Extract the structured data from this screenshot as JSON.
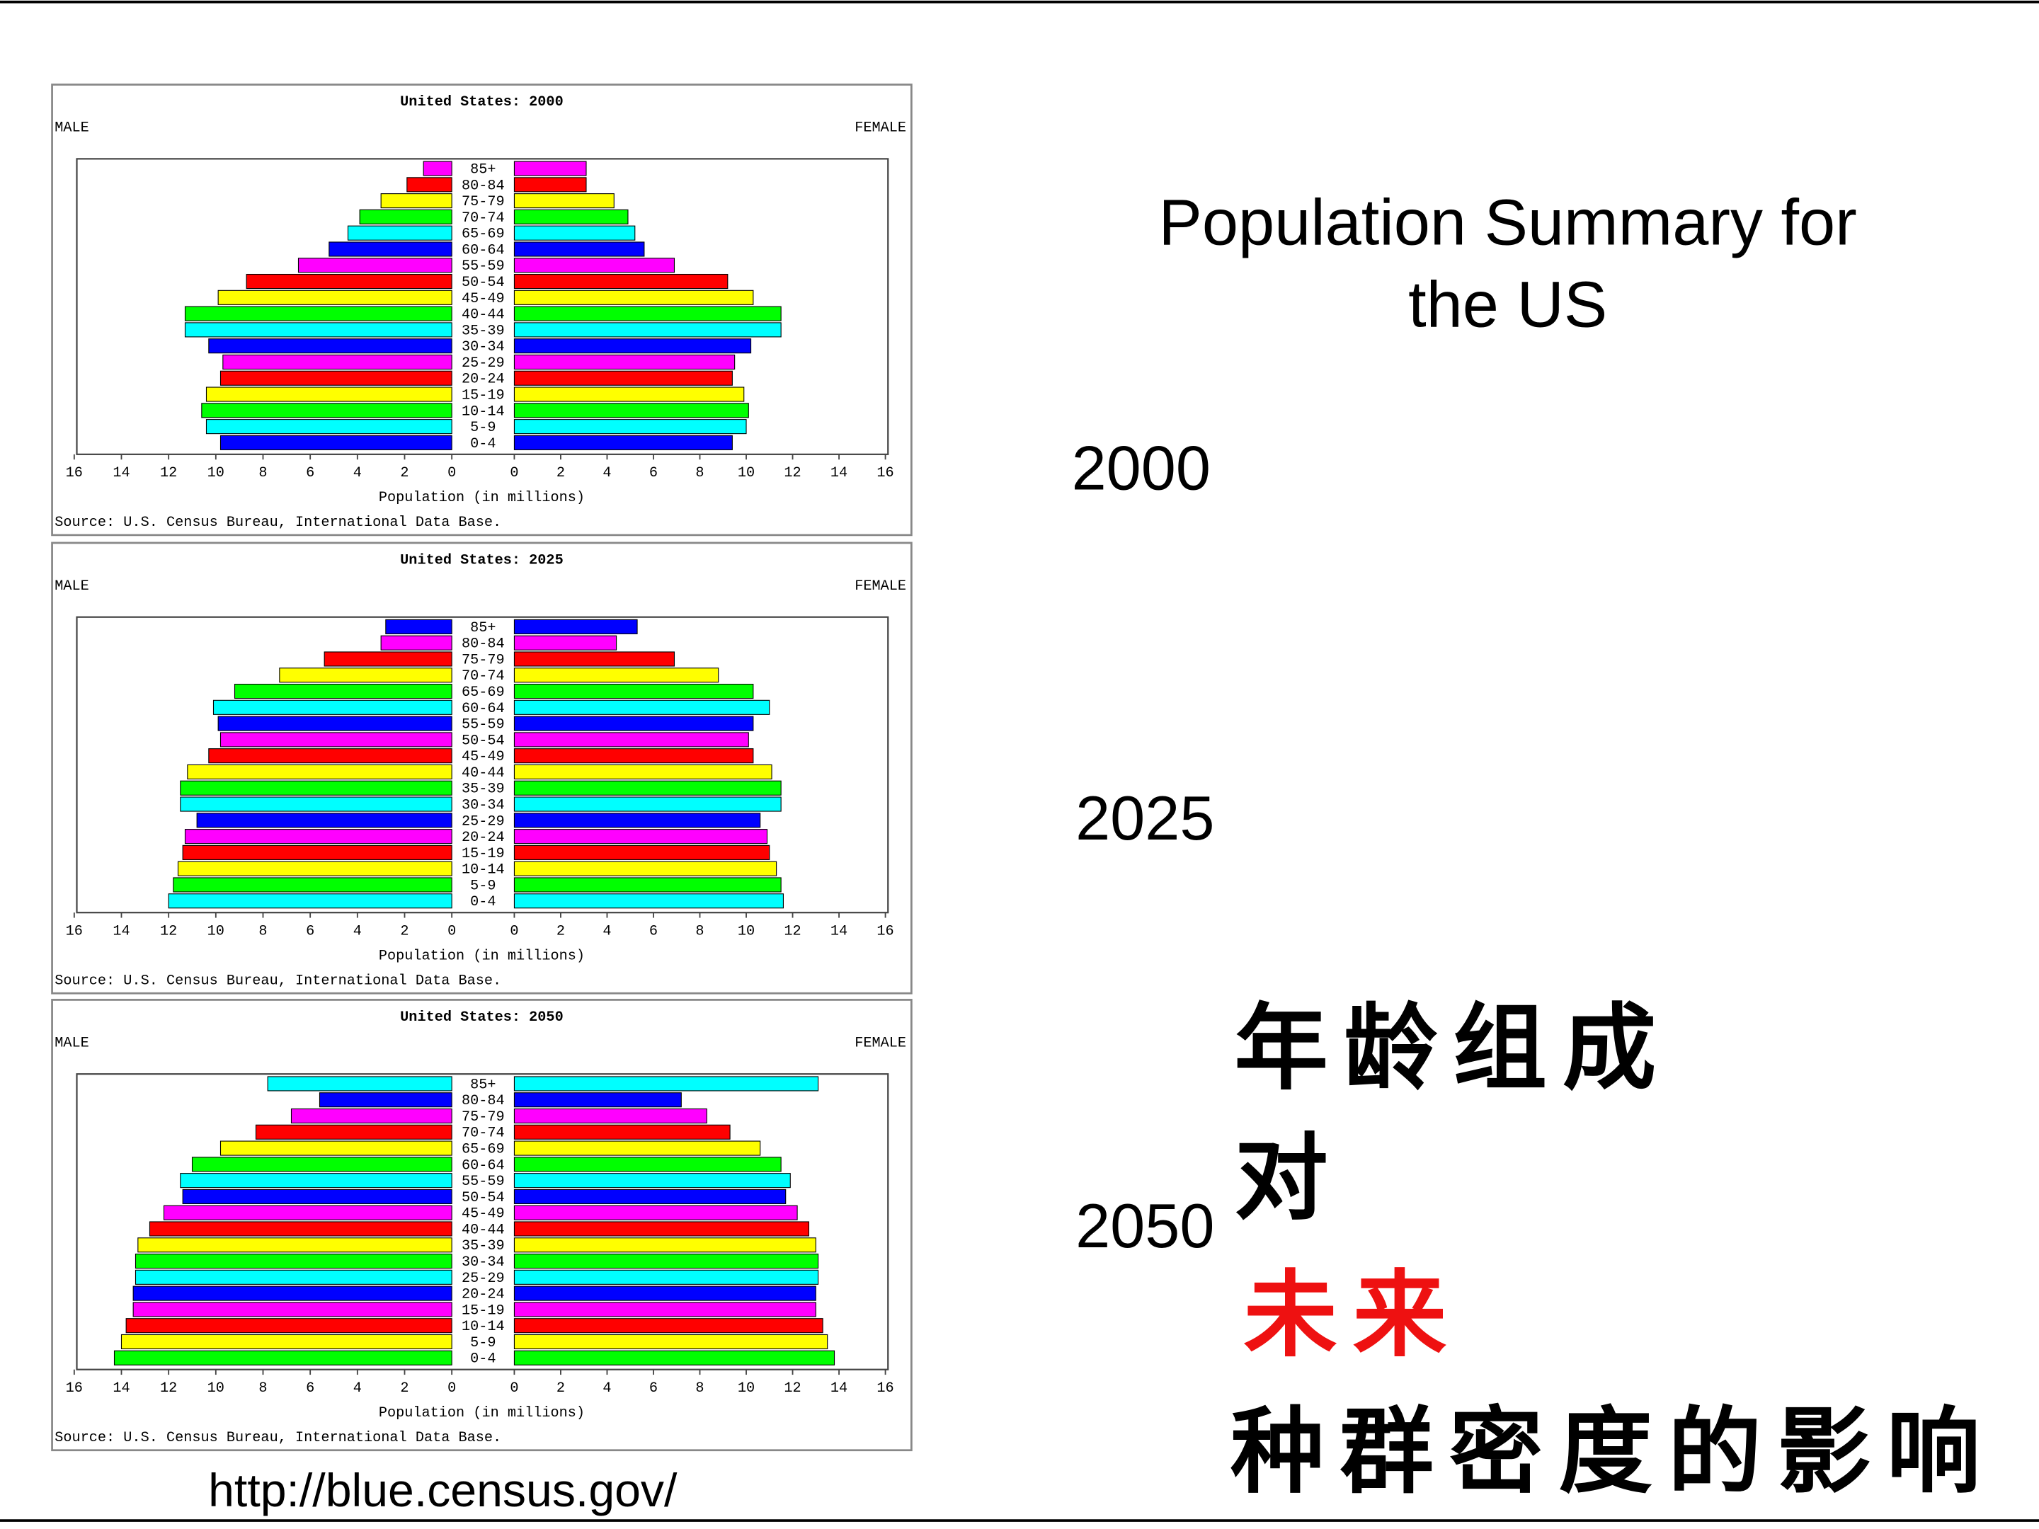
{
  "slide": {
    "title_lines": [
      "Population Summary for",
      "the US"
    ],
    "year_labels": [
      "2000",
      "2025",
      "2050"
    ],
    "note_lines": [
      {
        "text": "年龄组成",
        "color": "#000000"
      },
      {
        "text": "对",
        "color": "#000000"
      },
      {
        "text": "未来",
        "color": "#ee1111"
      },
      {
        "text": "种群密度的影响",
        "color": "#000000"
      }
    ],
    "url": "http://blue.census.gov/"
  },
  "chart_data": [
    {
      "type": "pyramid",
      "title": "United States: 2000",
      "x_label": "Population (in millions)",
      "source": "Source: U.S. Census Bureau, International Data Base.",
      "categories": [
        "0-4",
        "5-9",
        "10-14",
        "15-19",
        "20-24",
        "25-29",
        "30-34",
        "35-39",
        "40-44",
        "45-49",
        "50-54",
        "55-59",
        "60-64",
        "65-69",
        "70-74",
        "75-79",
        "80-84",
        "85+"
      ],
      "colors": [
        "#0000ff",
        "#00ffff",
        "#00ff00",
        "#ffff00",
        "#ff0000",
        "#ff00ff",
        "#0000ff",
        "#00ffff",
        "#00ff00",
        "#ffff00",
        "#ff0000",
        "#ff00ff",
        "#0000ff",
        "#00ffff",
        "#00ff00",
        "#ffff00",
        "#ff0000",
        "#ff00ff"
      ],
      "series": [
        {
          "name": "MALE",
          "values": [
            9.8,
            10.4,
            10.6,
            10.4,
            9.8,
            9.7,
            10.3,
            11.3,
            11.3,
            9.9,
            8.7,
            6.5,
            5.2,
            4.4,
            3.9,
            3.0,
            1.9,
            1.2
          ]
        },
        {
          "name": "FEMALE",
          "values": [
            9.4,
            10.0,
            10.1,
            9.9,
            9.4,
            9.5,
            10.2,
            11.5,
            11.5,
            10.3,
            9.2,
            6.9,
            5.6,
            5.2,
            4.9,
            4.3,
            3.1,
            3.1
          ]
        }
      ],
      "xlim": [
        0,
        16
      ],
      "xticks": [
        0,
        2,
        4,
        6,
        8,
        10,
        12,
        14,
        16
      ]
    },
    {
      "type": "pyramid",
      "title": "United States: 2025",
      "x_label": "Population (in millions)",
      "source": "Source: U.S. Census Bureau, International Data Base.",
      "categories": [
        "0-4",
        "5-9",
        "10-14",
        "15-19",
        "20-24",
        "25-29",
        "30-34",
        "35-39",
        "40-44",
        "45-49",
        "50-54",
        "55-59",
        "60-64",
        "65-69",
        "70-74",
        "75-79",
        "80-84",
        "85+"
      ],
      "colors": [
        "#00ffff",
        "#00ff00",
        "#ffff00",
        "#ff0000",
        "#ff00ff",
        "#0000ff",
        "#00ffff",
        "#00ff00",
        "#ffff00",
        "#ff0000",
        "#ff00ff",
        "#0000ff",
        "#00ffff",
        "#00ff00",
        "#ffff00",
        "#ff0000",
        "#ff00ff",
        "#0000ff"
      ],
      "series": [
        {
          "name": "MALE",
          "values": [
            12.0,
            11.8,
            11.6,
            11.4,
            11.3,
            10.8,
            11.5,
            11.5,
            11.2,
            10.3,
            9.8,
            9.9,
            10.1,
            9.2,
            7.3,
            5.4,
            3.0,
            2.8
          ]
        },
        {
          "name": "FEMALE",
          "values": [
            11.6,
            11.5,
            11.3,
            11.0,
            10.9,
            10.6,
            11.5,
            11.5,
            11.1,
            10.3,
            10.1,
            10.3,
            11.0,
            10.3,
            8.8,
            6.9,
            4.4,
            5.3
          ]
        }
      ],
      "xlim": [
        0,
        16
      ],
      "xticks": [
        0,
        2,
        4,
        6,
        8,
        10,
        12,
        14,
        16
      ]
    },
    {
      "type": "pyramid",
      "title": "United States: 2050",
      "x_label": "Population (in millions)",
      "source": "Source: U.S. Census Bureau, International Data Base.",
      "categories": [
        "0-4",
        "5-9",
        "10-14",
        "15-19",
        "20-24",
        "25-29",
        "30-34",
        "35-39",
        "40-44",
        "45-49",
        "50-54",
        "55-59",
        "60-64",
        "65-69",
        "70-74",
        "75-79",
        "80-84",
        "85+"
      ],
      "colors": [
        "#00ff00",
        "#ffff00",
        "#ff0000",
        "#ff00ff",
        "#0000ff",
        "#00ffff",
        "#00ff00",
        "#ffff00",
        "#ff0000",
        "#ff00ff",
        "#0000ff",
        "#00ffff",
        "#00ff00",
        "#ffff00",
        "#ff0000",
        "#ff00ff",
        "#0000ff",
        "#00ffff"
      ],
      "series": [
        {
          "name": "MALE",
          "values": [
            14.3,
            14.0,
            13.8,
            13.5,
            13.5,
            13.4,
            13.4,
            13.3,
            12.8,
            12.2,
            11.4,
            11.5,
            11.0,
            9.8,
            8.3,
            6.8,
            5.6,
            7.8
          ]
        },
        {
          "name": "FEMALE",
          "values": [
            13.8,
            13.5,
            13.3,
            13.0,
            13.0,
            13.1,
            13.1,
            13.0,
            12.7,
            12.2,
            11.7,
            11.9,
            11.5,
            10.6,
            9.3,
            8.3,
            7.2,
            13.1
          ]
        }
      ],
      "xlim": [
        0,
        16
      ],
      "xticks": [
        0,
        2,
        4,
        6,
        8,
        10,
        12,
        14,
        16
      ]
    }
  ]
}
